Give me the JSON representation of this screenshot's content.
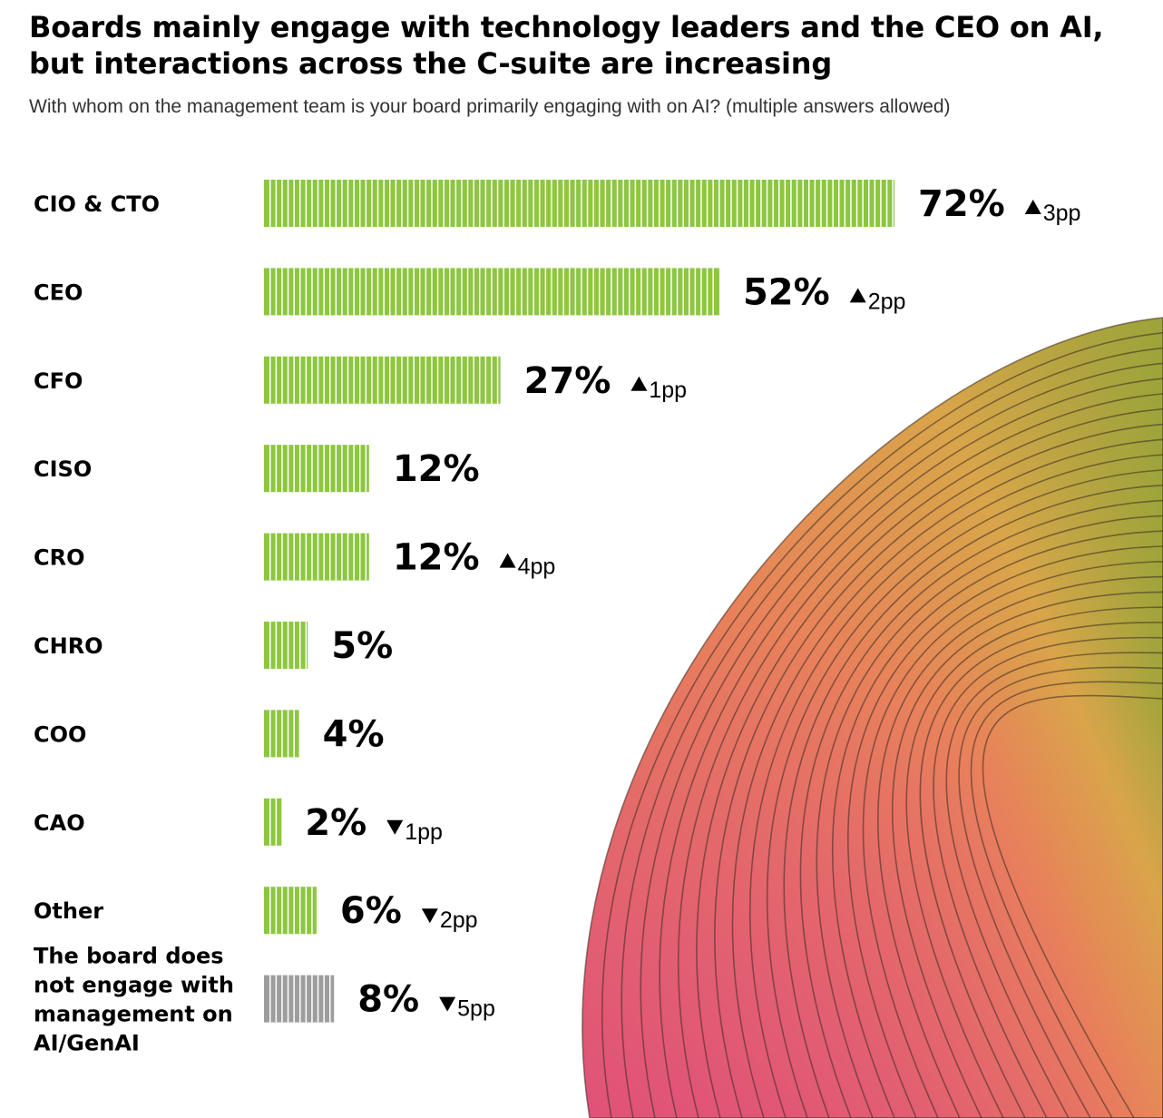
{
  "header": {
    "title": "Boards mainly engage with technology leaders and the CEO on AI, but interactions across the C-suite are increasing",
    "subtitle": "With whom on the management team is your board primarily engaging with on AI? (multiple answers allowed)"
  },
  "colors": {
    "bar": "#8dc63f",
    "bar_none": "#9d9d9d",
    "stripe": "#ffffff"
  },
  "chart_data": {
    "type": "bar",
    "orientation": "horizontal",
    "categories": [
      "CIO & CTO",
      "CEO",
      "CFO",
      "CISO",
      "CRO",
      "CHRO",
      "COO",
      "CAO",
      "Other",
      "The board does not engage with management on AI/GenAI"
    ],
    "category_lines": [
      [
        "CIO & CTO"
      ],
      [
        "CEO"
      ],
      [
        "CFO"
      ],
      [
        "CISO"
      ],
      [
        "CRO"
      ],
      [
        "CHRO"
      ],
      [
        "COO"
      ],
      [
        "CAO"
      ],
      [
        "Other"
      ],
      [
        "The board does",
        "not engage with",
        "management on",
        "AI/GenAI"
      ]
    ],
    "values": [
      72,
      52,
      27,
      12,
      12,
      5,
      4,
      2,
      6,
      8
    ],
    "value_labels": [
      "72%",
      "52%",
      "27%",
      "12%",
      "12%",
      "5%",
      "4%",
      "2%",
      "6%",
      "8%"
    ],
    "changes": [
      "3pp",
      "2pp",
      "1pp",
      "",
      "4pp",
      "",
      "",
      "1pp",
      "2pp",
      "5pp"
    ],
    "change_direction": [
      "up",
      "up",
      "up",
      "",
      "up",
      "",
      "",
      "down",
      "down",
      "down"
    ],
    "highlight_gray": [
      false,
      false,
      false,
      false,
      false,
      false,
      false,
      false,
      false,
      true
    ],
    "unit": "%"
  }
}
